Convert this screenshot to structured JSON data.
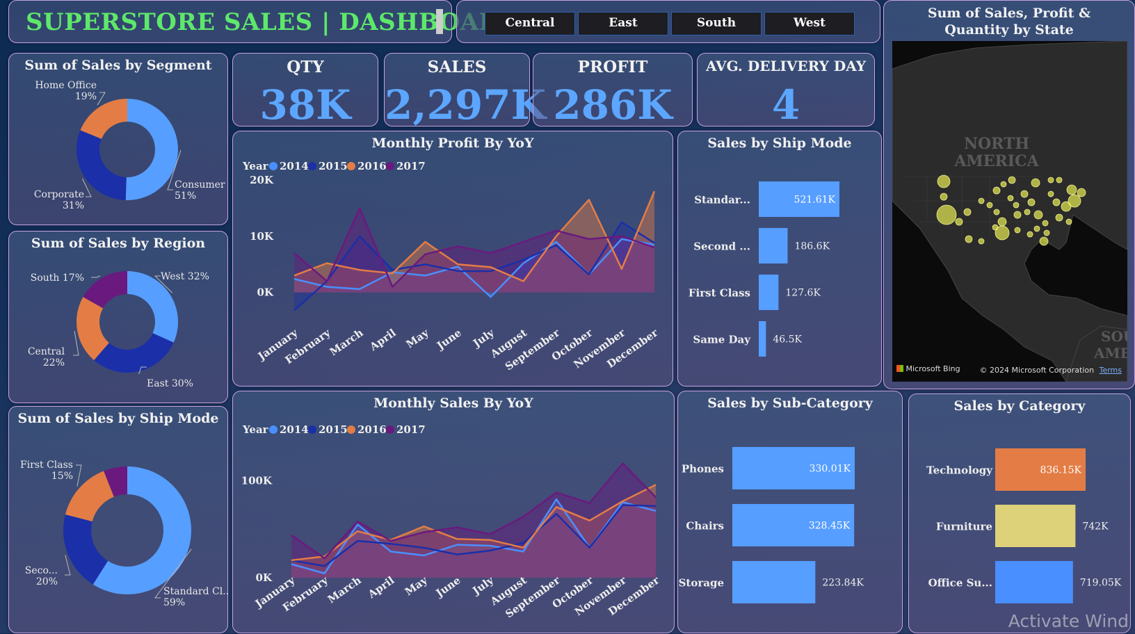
{
  "header": {
    "title": "SUPERSTORE SALES | DASHBOARD"
  },
  "regions": [
    "Central",
    "East",
    "South",
    "West"
  ],
  "kpis": {
    "qty": {
      "label": "QTY",
      "value": "38K"
    },
    "sales": {
      "label": "SALES",
      "value": "2,297K"
    },
    "profit": {
      "label": "PROFIT",
      "value": "286K"
    },
    "delivery": {
      "label": "AVG. DELIVERY DAY",
      "value": "4"
    }
  },
  "map": {
    "title": "Sum of Sales, Profit & Quantity by State",
    "label_na": "NORTH\nAMERICA",
    "label_sa": "SOU\nAMER",
    "brand": "Microsoft Bing",
    "copyright": "© 2024 Microsoft Corporation",
    "terms": "Terms"
  },
  "watermark": "Activate Wind",
  "colors": {
    "y2014": "#4a8fff",
    "y2015": "#1b2fa8",
    "y2016": "#e37d45",
    "y2017": "#6a1a7e",
    "blue": "#569eff",
    "orange": "#e37d45",
    "yellow": "#ddd17a",
    "green": "#5ee86a"
  },
  "chart_data": [
    {
      "id": "segment",
      "type": "pie",
      "title": "Sum of Sales by Segment",
      "labels": [
        "Consumer",
        "Corporate",
        "Home Office"
      ],
      "values": [
        51,
        31,
        19
      ],
      "display": [
        "Consumer\n51%",
        "Corporate\n31%",
        "Home Office\n19%"
      ]
    },
    {
      "id": "region",
      "type": "pie",
      "title": "Sum of Sales by Region",
      "labels": [
        "West",
        "East",
        "Central",
        "South"
      ],
      "values": [
        32,
        30,
        22,
        17
      ],
      "display": [
        "West 32%",
        "East 30%",
        "Central\n22%",
        "South 17%"
      ]
    },
    {
      "id": "shipmode_pie",
      "type": "pie",
      "title": "Sum of Sales by Ship Mode",
      "labels": [
        "Standard Class",
        "Second Class",
        "First Class",
        "Same Day"
      ],
      "values": [
        59,
        20,
        15,
        6
      ],
      "display": [
        "Standard Cl...\n59%",
        "Seco...\n20%",
        "First Class\n15%",
        ""
      ]
    },
    {
      "id": "profit_yoy",
      "type": "area",
      "title": "Monthly Profit By YoY",
      "legend_title": "Year",
      "categories": [
        "January",
        "February",
        "March",
        "April",
        "May",
        "June",
        "July",
        "August",
        "September",
        "October",
        "November",
        "December"
      ],
      "yticks": [
        "0K",
        "10K",
        "20K"
      ],
      "ylim": [
        -4000,
        20000
      ],
      "series": [
        {
          "name": "2014",
          "values": [
            2400,
            1000,
            600,
            3600,
            3000,
            4600,
            -800,
            5200,
            9000,
            3200,
            9500,
            8500
          ]
        },
        {
          "name": "2015",
          "values": [
            -3200,
            2000,
            10000,
            4000,
            5000,
            3800,
            3800,
            5800,
            8400,
            3200,
            12500,
            8800
          ]
        },
        {
          "name": "2016",
          "values": [
            3000,
            5200,
            4000,
            3400,
            9000,
            5000,
            4500,
            2000,
            10000,
            16500,
            4200,
            18000
          ]
        },
        {
          "name": "2017",
          "values": [
            7000,
            2000,
            15000,
            1000,
            6800,
            8200,
            7000,
            9000,
            11000,
            9500,
            10000,
            8000
          ]
        }
      ]
    },
    {
      "id": "sales_yoy",
      "type": "area",
      "title": "Monthly Sales By YoY",
      "legend_title": "Year",
      "categories": [
        "January",
        "February",
        "March",
        "April",
        "May",
        "June",
        "July",
        "August",
        "September",
        "October",
        "November",
        "December"
      ],
      "yticks": [
        "0K",
        "100K"
      ],
      "ylim": [
        0,
        135000
      ],
      "series": [
        {
          "name": "2014",
          "values": [
            14000,
            4500,
            55000,
            27000,
            23000,
            34000,
            33000,
            27000,
            81000,
            31000,
            78000,
            69000
          ]
        },
        {
          "name": "2015",
          "values": [
            18000,
            12000,
            38000,
            35000,
            31000,
            24000,
            28000,
            36000,
            66000,
            31000,
            75000,
            74000
          ]
        },
        {
          "name": "2016",
          "values": [
            18000,
            22000,
            48000,
            39000,
            53000,
            40000,
            39000,
            31000,
            73000,
            59000,
            79000,
            96000
          ]
        },
        {
          "name": "2017",
          "values": [
            44000,
            20000,
            58000,
            38000,
            47000,
            52000,
            45000,
            63000,
            88000,
            77000,
            118000,
            83000
          ]
        }
      ]
    },
    {
      "id": "shipmode_bar",
      "type": "bar",
      "orientation": "horizontal",
      "title": "Sales by Ship Mode",
      "categories": [
        "Standar...",
        "Second ...",
        "First Class",
        "Same Day"
      ],
      "values": [
        521.61,
        186.6,
        127.6,
        46.5
      ],
      "labels": [
        "521.61K",
        "186.6K",
        "127.6K",
        "46.5K"
      ],
      "unit": "K"
    },
    {
      "id": "subcat",
      "type": "bar",
      "orientation": "horizontal",
      "title": "Sales by Sub-Category",
      "categories": [
        "Phones",
        "Chairs",
        "Storage"
      ],
      "values": [
        330.01,
        328.45,
        223.84
      ],
      "labels": [
        "330.01K",
        "328.45K",
        "223.84K"
      ],
      "unit": "K"
    },
    {
      "id": "category",
      "type": "bar",
      "orientation": "horizontal",
      "title": "Sales by Category",
      "categories": [
        "Technology",
        "Furniture",
        "Office Su..."
      ],
      "values": [
        836.15,
        742,
        719.05
      ],
      "labels": [
        "836.15K",
        "742K",
        "719.05K"
      ],
      "unit": "K"
    }
  ]
}
